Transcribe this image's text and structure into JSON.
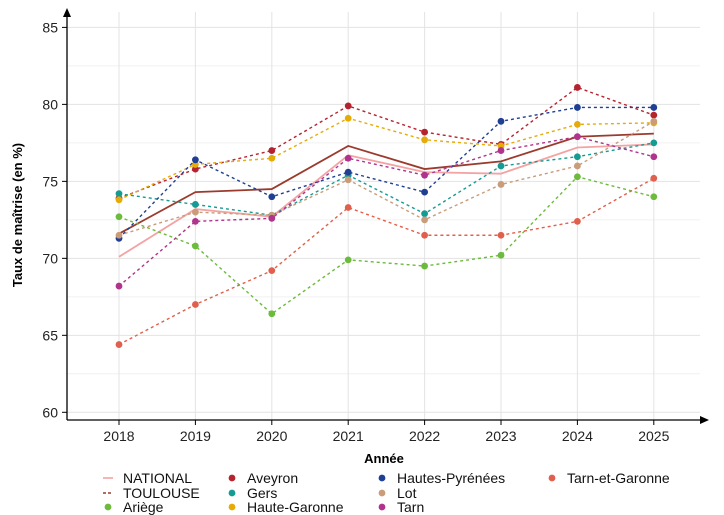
{
  "chart_data": {
    "type": "line",
    "xlabel": "Année",
    "ylabel": "Taux de maîtrise (en %)",
    "ylim": [
      59.5,
      86
    ],
    "yticks": [
      60,
      65,
      70,
      75,
      80,
      85
    ],
    "x": [
      "2018",
      "2019",
      "2020",
      "2021",
      "2022",
      "2023",
      "2024",
      "2025"
    ],
    "grid": true,
    "legend_position": "bottom",
    "series": [
      {
        "name": "NATIONAL",
        "color": "#f4a3a3",
        "style": "solid",
        "markers": false,
        "values": [
          70.1,
          73.2,
          72.7,
          76.7,
          75.6,
          75.5,
          77.2,
          77.4
        ]
      },
      {
        "name": "TOULOUSE",
        "color": "#9b3b2e",
        "style": "solid",
        "markers": false,
        "values": [
          71.6,
          74.3,
          74.5,
          77.3,
          75.8,
          76.3,
          77.9,
          78.1
        ]
      },
      {
        "name": "Ariège",
        "color": "#6cbb3c",
        "style": "dashed",
        "markers": true,
        "values": [
          72.7,
          70.8,
          66.4,
          69.9,
          69.5,
          70.2,
          75.3,
          74.0
        ]
      },
      {
        "name": "Aveyron",
        "color": "#b5232f",
        "style": "dashed",
        "markers": true,
        "values": [
          73.9,
          75.8,
          77.0,
          79.9,
          78.2,
          77.4,
          81.1,
          79.3
        ]
      },
      {
        "name": "Gers",
        "color": "#169b93",
        "style": "dashed",
        "markers": true,
        "values": [
          74.2,
          73.5,
          72.8,
          75.4,
          72.9,
          76.0,
          76.6,
          77.5
        ]
      },
      {
        "name": "Haute-Garonne",
        "color": "#e5ac08",
        "style": "dashed",
        "markers": true,
        "values": [
          73.8,
          76.1,
          76.5,
          79.1,
          77.7,
          77.3,
          78.7,
          78.8
        ]
      },
      {
        "name": "Hautes-Pyrénées",
        "color": "#1f3f93",
        "style": "dashed",
        "markers": true,
        "values": [
          71.3,
          76.4,
          74.0,
          75.6,
          74.3,
          78.9,
          79.8,
          79.8
        ]
      },
      {
        "name": "Lot",
        "color": "#c99c7a",
        "style": "dashed",
        "markers": true,
        "values": [
          71.5,
          73.0,
          72.8,
          75.1,
          72.5,
          74.8,
          76.0,
          78.9
        ]
      },
      {
        "name": "Tarn",
        "color": "#b0338d",
        "style": "dashed",
        "markers": true,
        "values": [
          68.2,
          72.4,
          72.6,
          76.5,
          75.4,
          77.0,
          77.9,
          76.6
        ]
      },
      {
        "name": "Tarn-et-Garonne",
        "color": "#e0604d",
        "style": "dashed",
        "markers": true,
        "values": [
          64.4,
          67.0,
          69.2,
          73.3,
          71.5,
          71.5,
          72.4,
          75.2
        ]
      }
    ]
  }
}
